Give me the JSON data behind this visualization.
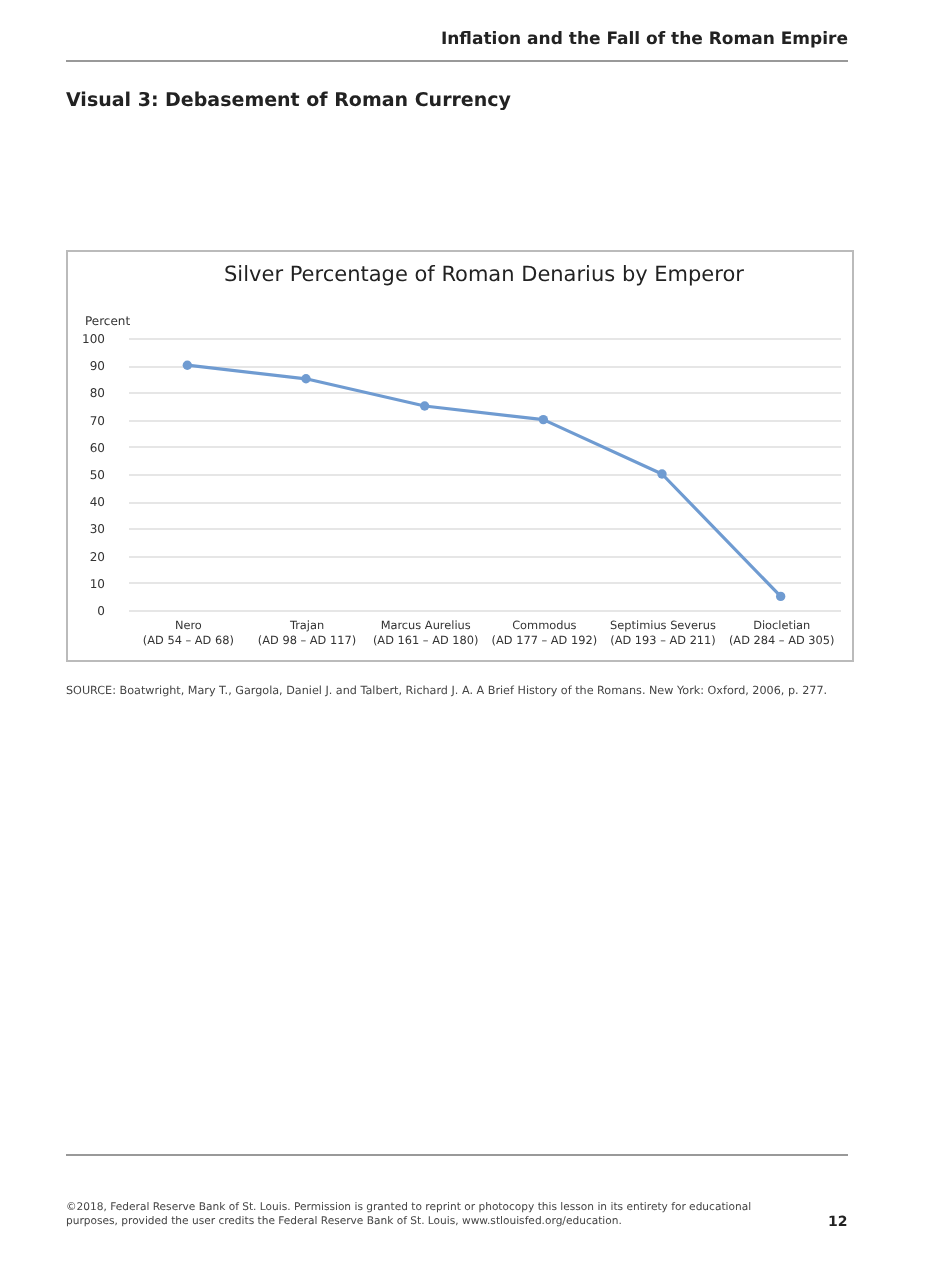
{
  "chart_data": {
    "type": "line",
    "title": "Silver Percentage of Roman Denarius by Emperor",
    "ylabel": "Percent",
    "categories": [
      "Nero\n(AD 54 – AD 68)",
      "Trajan\n(AD 98 – AD 117)",
      "Marcus Aurelius\n(AD 161 – AD 180)",
      "Commodus\n(AD 177 – AD 192)",
      "Septimius Severus\n(AD 193 – AD 211)",
      "Diocletian\n(AD 284 – AD 305)"
    ],
    "series": [
      {
        "color": "#6f9bd1",
        "values": [
          90,
          85,
          75,
          70,
          50,
          5
        ]
      }
    ],
    "ylim": [
      0,
      100
    ],
    "yticks": [
      0,
      10,
      20,
      30,
      40,
      50,
      60,
      70,
      80,
      90,
      100
    ],
    "grid": "y",
    "marker": "circle",
    "line_style": "solid",
    "annotations": [
      "Inflation and the Fall of the Roman Empire",
      "Visual 3: Debasement of Roman Currency",
      "SOURCE: Boatwright, Mary T., Gargola, Daniel J. and Talbert, Richard J. A. A Brief History of the Romans. New York: Oxford, 2006, p. 277.",
      "©2018, Federal Reserve Bank of St. Louis. Permission is granted to reprint or photocopy this lesson in its entirety for educational purposes, provided the user credits the Federal Reserve Bank of St. Louis, www.stlouisfed.org/education.",
      "12"
    ]
  }
}
